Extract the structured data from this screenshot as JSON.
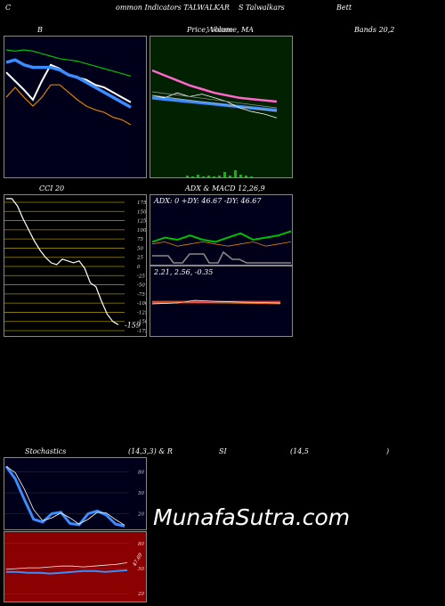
{
  "header": {
    "a": "C",
    "b": "ommon Indicators TALWALKAR",
    "c": "S Talwalkars",
    "d": "Bett"
  },
  "titles": {
    "bands": "B",
    "price": "Price, Volume, MA",
    "price_overlap": "Volume",
    "bands_right": "Bands 20,2",
    "cci": "CCI 20",
    "adx": "ADX  & MACD 12,26,9",
    "adx_values": "ADX: 0  +DY: 46.67 -DY: 46.67",
    "macd_values": "2.21,  2.56,  -0.35",
    "stoch_a": "Stochastics",
    "stoch_b": "(14,3,3) & R",
    "stoch_c": "SI",
    "stoch_d": "(14,5",
    "stoch_e": ")"
  },
  "cci_ticks": [
    "175",
    "150",
    "125",
    "100",
    "75",
    "50",
    "25",
    "0",
    "-25",
    "-50",
    "-75",
    "-100",
    "-125",
    "-150",
    "-175"
  ],
  "cci_last": "-159",
  "stoch_ticks": [
    "80",
    "50",
    "20"
  ],
  "rsi_ticks": [
    "80",
    "50",
    "20"
  ],
  "rsi_label": "47.69",
  "watermark": "MunafaSutra.com",
  "colors": {
    "bands_bg": "#00001a",
    "price_bg": "#002200",
    "cci_bg": "#000000",
    "cci_grid": "#9a8a00",
    "adx_bg": "#00001a",
    "stoch_bg": "#00001a",
    "rsi_bg": "#8b0000",
    "blue": "#3a8cff",
    "green": "#00c000",
    "orange": "#e08000",
    "pink": "#ff66cc"
  },
  "chart_data": [
    {
      "type": "line",
      "title": "Bollinger Bands 20,2",
      "series": [
        {
          "values": [
            62,
            70,
            62,
            55,
            62,
            72,
            72,
            66,
            60,
            55,
            52,
            50,
            46,
            44,
            40
          ]
        },
        {
          "values": [
            82,
            75,
            68,
            60,
            75,
            88,
            85,
            80,
            78,
            76,
            72,
            70,
            66,
            62,
            58
          ]
        },
        {
          "values": [
            90,
            92,
            88,
            86,
            86,
            86,
            84,
            80,
            78,
            74,
            70,
            66,
            62,
            58,
            54
          ]
        },
        {
          "values": [
            100,
            99,
            100,
            99,
            97,
            95,
            93,
            92,
            91,
            89,
            87,
            85,
            83,
            81,
            79
          ]
        }
      ]
    },
    {
      "type": "line",
      "title": "Price, Volume, MA",
      "series": [
        {
          "values": [
            80,
            76,
            72,
            68,
            65,
            62,
            60,
            58,
            57,
            56,
            55
          ]
        },
        {
          "values": [
            58,
            57,
            56,
            55,
            54,
            53,
            52,
            51,
            50,
            49,
            48
          ]
        },
        {
          "values": [
            60,
            58,
            62,
            59,
            61,
            58,
            55,
            50,
            47,
            45,
            42
          ]
        }
      ]
    },
    {
      "type": "line",
      "title": "CCI 20",
      "ylim": [
        -175,
        175
      ],
      "series": [
        {
          "values": [
            185,
            185,
            165,
            130,
            100,
            70,
            45,
            25,
            10,
            5,
            20,
            15,
            10,
            15,
            -5,
            -45,
            -55,
            -95,
            -130,
            -150,
            -159
          ]
        }
      ]
    },
    {
      "type": "line",
      "title": "ADX & MACD 12,26,9",
      "series": [
        {
          "values": [
            48,
            52,
            50,
            54,
            50,
            48,
            52,
            56,
            50,
            52,
            54,
            58
          ]
        },
        {
          "values": [
            46,
            48,
            44,
            46,
            48,
            46,
            44,
            46,
            48,
            44,
            46,
            48
          ]
        }
      ]
    },
    {
      "type": "line",
      "title": "Stochastics (14,3,3)",
      "ylim": [
        0,
        100
      ],
      "series": [
        {
          "values": [
            88,
            70,
            40,
            12,
            8,
            20,
            22,
            6,
            4,
            20,
            24,
            18,
            5,
            2
          ]
        }
      ]
    },
    {
      "type": "line",
      "title": "RSI (14,5)",
      "ylim": [
        0,
        100
      ],
      "series": [
        {
          "values": [
            46,
            46,
            45,
            45,
            44,
            45,
            46,
            47,
            47,
            46,
            47,
            48
          ]
        },
        {
          "values": [
            49,
            50,
            51,
            51,
            52,
            53,
            53,
            52,
            53,
            54,
            55,
            57
          ]
        }
      ]
    }
  ]
}
